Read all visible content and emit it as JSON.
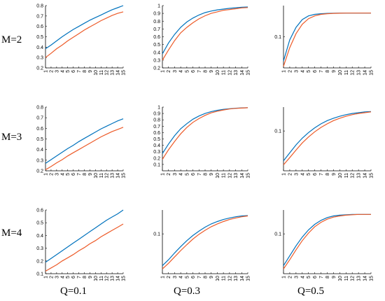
{
  "figure": {
    "row_labels": [
      "M=2",
      "M=3",
      "M=4"
    ],
    "col_labels": [
      "Q=0.1",
      "Q=0.3",
      "Q=0.5"
    ],
    "colors": {
      "blue": "#0072BD",
      "red": "#ED5B29"
    }
  },
  "chart_data": [
    {
      "type": "line",
      "row": "M=2",
      "col": "Q=0.1",
      "x": [
        1,
        2,
        3,
        4,
        5,
        6,
        7,
        8,
        9,
        10,
        11,
        12,
        13,
        14,
        15
      ],
      "ylim": [
        0.2,
        0.8
      ],
      "yticks": [
        "0.2",
        "0.3",
        "0.4",
        "0.5",
        "0.6",
        "0.7",
        "0.8"
      ],
      "ytick_values": [
        0.2,
        0.3,
        0.4,
        0.5,
        0.6,
        0.7,
        0.8
      ],
      "series": [
        {
          "color": "#0072BD",
          "values": [
            0.385,
            0.42,
            0.46,
            0.5,
            0.535,
            0.57,
            0.6,
            0.63,
            0.66,
            0.685,
            0.71,
            0.735,
            0.76,
            0.78,
            0.8
          ]
        },
        {
          "color": "#ED5B29",
          "values": [
            0.3,
            0.34,
            0.385,
            0.42,
            0.46,
            0.495,
            0.53,
            0.565,
            0.595,
            0.625,
            0.655,
            0.68,
            0.705,
            0.725,
            0.74
          ]
        }
      ]
    },
    {
      "type": "line",
      "row": "M=2",
      "col": "Q=0.3",
      "x": [
        1,
        2,
        3,
        4,
        5,
        6,
        7,
        8,
        9,
        10,
        11,
        12,
        13,
        14,
        15
      ],
      "ylim": [
        0.2,
        1.0
      ],
      "yticks": [
        "0.2",
        "0.3",
        "0.4",
        "0.5",
        "0.6",
        "0.7",
        "0.8",
        "0.9",
        "1"
      ],
      "ytick_values": [
        0.2,
        0.3,
        0.4,
        0.5,
        0.6,
        0.7,
        0.8,
        0.9,
        1.0
      ],
      "series": [
        {
          "color": "#0072BD",
          "values": [
            0.38,
            0.52,
            0.63,
            0.72,
            0.79,
            0.84,
            0.88,
            0.91,
            0.93,
            0.945,
            0.955,
            0.965,
            0.972,
            0.978,
            0.982
          ]
        },
        {
          "color": "#ED5B29",
          "values": [
            0.3,
            0.43,
            0.55,
            0.65,
            0.72,
            0.78,
            0.83,
            0.87,
            0.9,
            0.92,
            0.94,
            0.95,
            0.96,
            0.97,
            0.975
          ]
        }
      ]
    },
    {
      "type": "line",
      "row": "M=2",
      "col": "Q=0.5",
      "x": [
        1,
        2,
        3,
        4,
        5,
        6,
        7,
        8,
        9,
        10,
        11,
        12,
        13,
        14,
        15
      ],
      "ylim": [
        0.0,
        0.2
      ],
      "yticks": [
        "0.1"
      ],
      "ytick_values": [
        0.1
      ],
      "series": [
        {
          "color": "#0072BD",
          "values": [
            0.022,
            0.09,
            0.13,
            0.155,
            0.167,
            0.172,
            0.174,
            0.175,
            0.1755,
            0.176,
            0.176,
            0.176,
            0.176,
            0.176,
            0.176
          ]
        },
        {
          "color": "#ED5B29",
          "values": [
            0.005,
            0.065,
            0.11,
            0.14,
            0.158,
            0.167,
            0.172,
            0.174,
            0.175,
            0.1755,
            0.176,
            0.176,
            0.176,
            0.176,
            0.176
          ]
        }
      ]
    },
    {
      "type": "line",
      "row": "M=3",
      "col": "Q=0.1",
      "x": [
        1,
        2,
        3,
        4,
        5,
        6,
        7,
        8,
        9,
        10,
        11,
        12,
        13,
        14,
        15
      ],
      "ylim": [
        0.2,
        0.8
      ],
      "yticks": [
        "0.2",
        "0.3",
        "0.4",
        "0.5",
        "0.6",
        "0.7",
        "0.8"
      ],
      "ytick_values": [
        0.2,
        0.3,
        0.4,
        0.5,
        0.6,
        0.7,
        0.8
      ],
      "series": [
        {
          "color": "#0072BD",
          "values": [
            0.27,
            0.305,
            0.34,
            0.375,
            0.41,
            0.44,
            0.475,
            0.505,
            0.535,
            0.565,
            0.595,
            0.62,
            0.645,
            0.67,
            0.69
          ]
        },
        {
          "color": "#ED5B29",
          "values": [
            0.21,
            0.24,
            0.275,
            0.305,
            0.34,
            0.37,
            0.4,
            0.43,
            0.46,
            0.49,
            0.52,
            0.545,
            0.57,
            0.59,
            0.61
          ]
        }
      ]
    },
    {
      "type": "line",
      "row": "M=3",
      "col": "Q=0.3",
      "x": [
        1,
        2,
        3,
        4,
        5,
        6,
        7,
        8,
        9,
        10,
        11,
        12,
        13,
        14,
        15
      ],
      "ylim": [
        0.0,
        1.0
      ],
      "yticks": [
        "0.1",
        "0.2",
        "0.3",
        "0.4",
        "0.5",
        "0.6",
        "0.7",
        "0.8",
        "0.9",
        "1"
      ],
      "ytick_values": [
        0.1,
        0.2,
        0.3,
        0.4,
        0.5,
        0.6,
        0.7,
        0.8,
        0.9,
        1.0
      ],
      "series": [
        {
          "color": "#0072BD",
          "values": [
            0.27,
            0.42,
            0.55,
            0.66,
            0.74,
            0.81,
            0.86,
            0.9,
            0.93,
            0.95,
            0.965,
            0.975,
            0.982,
            0.988,
            0.99
          ]
        },
        {
          "color": "#ED5B29",
          "values": [
            0.18,
            0.33,
            0.46,
            0.58,
            0.68,
            0.76,
            0.82,
            0.87,
            0.91,
            0.935,
            0.955,
            0.97,
            0.98,
            0.985,
            0.99
          ]
        }
      ]
    },
    {
      "type": "line",
      "row": "M=3",
      "col": "Q=0.5",
      "x": [
        1,
        2,
        3,
        4,
        5,
        6,
        7,
        8,
        9,
        10,
        11,
        12,
        13,
        14,
        15
      ],
      "ylim": [
        0.0,
        0.16
      ],
      "yticks": [
        "0.1"
      ],
      "ytick_values": [
        0.1
      ],
      "series": [
        {
          "color": "#0072BD",
          "values": [
            0.025,
            0.045,
            0.065,
            0.082,
            0.096,
            0.108,
            0.118,
            0.126,
            0.132,
            0.137,
            0.141,
            0.144,
            0.146,
            0.148,
            0.149
          ]
        },
        {
          "color": "#ED5B29",
          "values": [
            0.015,
            0.033,
            0.052,
            0.07,
            0.085,
            0.098,
            0.109,
            0.118,
            0.126,
            0.132,
            0.137,
            0.141,
            0.144,
            0.146,
            0.148
          ]
        }
      ]
    },
    {
      "type": "line",
      "row": "M=4",
      "col": "Q=0.1",
      "x": [
        1,
        2,
        3,
        4,
        5,
        6,
        7,
        8,
        9,
        10,
        11,
        12,
        13,
        14,
        15
      ],
      "ylim": [
        0.1,
        0.6
      ],
      "yticks": [
        "0.1",
        "0.2",
        "0.3",
        "0.4",
        "0.5",
        "0.6"
      ],
      "ytick_values": [
        0.1,
        0.2,
        0.3,
        0.4,
        0.5,
        0.6
      ],
      "series": [
        {
          "color": "#0072BD",
          "values": [
            0.19,
            0.22,
            0.25,
            0.28,
            0.31,
            0.34,
            0.37,
            0.4,
            0.43,
            0.46,
            0.49,
            0.52,
            0.545,
            0.57,
            0.6
          ]
        },
        {
          "color": "#ED5B29",
          "values": [
            0.12,
            0.145,
            0.17,
            0.2,
            0.225,
            0.25,
            0.28,
            0.305,
            0.335,
            0.36,
            0.39,
            0.415,
            0.44,
            0.465,
            0.49
          ]
        }
      ]
    },
    {
      "type": "line",
      "row": "M=4",
      "col": "Q=0.3",
      "x": [
        1,
        2,
        3,
        4,
        5,
        6,
        7,
        8,
        9,
        10,
        11,
        12,
        13,
        14,
        15
      ],
      "ylim": [
        0.0,
        0.16
      ],
      "yticks": [
        "0.1"
      ],
      "ytick_values": [
        0.1
      ],
      "series": [
        {
          "color": "#0072BD",
          "values": [
            0.02,
            0.035,
            0.052,
            0.068,
            0.083,
            0.096,
            0.107,
            0.117,
            0.125,
            0.131,
            0.136,
            0.14,
            0.143,
            0.145,
            0.146
          ]
        },
        {
          "color": "#ED5B29",
          "values": [
            0.012,
            0.026,
            0.042,
            0.058,
            0.073,
            0.087,
            0.099,
            0.109,
            0.118,
            0.125,
            0.131,
            0.136,
            0.14,
            0.143,
            0.145
          ]
        }
      ]
    },
    {
      "type": "line",
      "row": "M=4",
      "col": "Q=0.5",
      "x": [
        1,
        2,
        3,
        4,
        5,
        6,
        7,
        8,
        9,
        10,
        11,
        12,
        13,
        14,
        15
      ],
      "ylim": [
        0.0,
        0.16
      ],
      "yticks": [
        "0.1"
      ],
      "ytick_values": [
        0.1
      ],
      "series": [
        {
          "color": "#0072BD",
          "values": [
            0.02,
            0.045,
            0.07,
            0.092,
            0.11,
            0.124,
            0.134,
            0.141,
            0.145,
            0.147,
            0.148,
            0.149,
            0.149,
            0.149,
            0.149
          ]
        },
        {
          "color": "#ED5B29",
          "values": [
            0.012,
            0.035,
            0.06,
            0.083,
            0.102,
            0.118,
            0.129,
            0.137,
            0.142,
            0.145,
            0.147,
            0.148,
            0.149,
            0.149,
            0.149
          ]
        }
      ]
    }
  ]
}
